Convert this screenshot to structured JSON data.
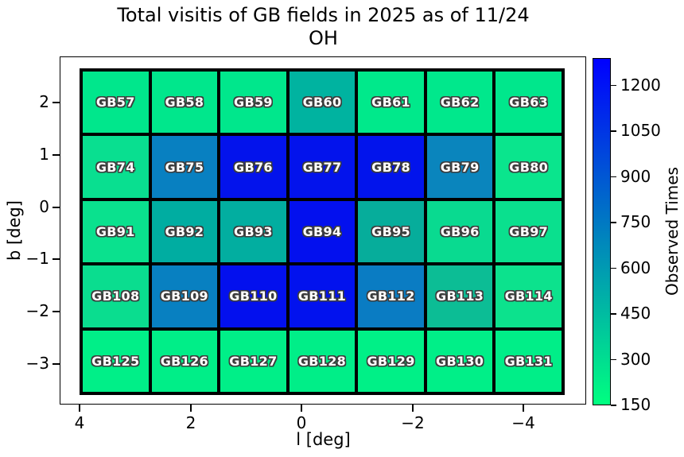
{
  "title": {
    "line1": "Total visitis of GB fields in 2025 as of 11/24",
    "line2": "OH"
  },
  "chart_data": {
    "type": "heatmap",
    "title": "Total visitis of GB fields in 2025 as of 11/24 OH",
    "xlabel": "l [deg]",
    "ylabel": "b [deg]",
    "x_ticks": [
      "4",
      "2",
      "0",
      "−2",
      "−4"
    ],
    "y_ticks": [
      "2",
      "1",
      "0",
      "−1",
      "−2",
      "−3"
    ],
    "colorbar": {
      "label": "Observed Times",
      "ticks": [
        "1200",
        "1050",
        "900",
        "750",
        "600",
        "450",
        "300",
        "150"
      ],
      "range_low": 150,
      "range_high": 1290,
      "color_low": "#00ff80",
      "color_high": "#0000ff",
      "colormap": "winter"
    },
    "rows": [
      {
        "cells": [
          {
            "label": "GB57",
            "value": 250,
            "color": "#00e78c"
          },
          {
            "label": "GB58",
            "value": 250,
            "color": "#00e78c"
          },
          {
            "label": "GB59",
            "value": 250,
            "color": "#00e78c"
          },
          {
            "label": "GB60",
            "value": 490,
            "color": "#00b3a0"
          },
          {
            "label": "GB61",
            "value": 245,
            "color": "#00e98b"
          },
          {
            "label": "GB62",
            "value": 250,
            "color": "#00e88c"
          },
          {
            "label": "GB63",
            "value": 250,
            "color": "#00e78c"
          }
        ]
      },
      {
        "cells": [
          {
            "label": "GB74",
            "value": 300,
            "color": "#09df90"
          },
          {
            "label": "GB75",
            "value": 720,
            "color": "#0880c1"
          },
          {
            "label": "GB76",
            "value": 1230,
            "color": "#0313ec"
          },
          {
            "label": "GB77",
            "value": 1230,
            "color": "#0313ec"
          },
          {
            "label": "GB78",
            "value": 1225,
            "color": "#0214ec"
          },
          {
            "label": "GB79",
            "value": 695,
            "color": "#0a85bd"
          },
          {
            "label": "GB80",
            "value": 265,
            "color": "#0ae58d"
          }
        ]
      },
      {
        "cells": [
          {
            "label": "GB91",
            "value": 280,
            "color": "#0ae18e"
          },
          {
            "label": "GB92",
            "value": 515,
            "color": "#00ada1"
          },
          {
            "label": "GB93",
            "value": 510,
            "color": "#02aea0"
          },
          {
            "label": "GB94",
            "value": 1245,
            "color": "#0310ee"
          },
          {
            "label": "GB95",
            "value": 510,
            "color": "#06ad9b"
          },
          {
            "label": "GB96",
            "value": 320,
            "color": "#09da90"
          },
          {
            "label": "GB97",
            "value": 285,
            "color": "#0ae08e"
          }
        ]
      },
      {
        "cells": [
          {
            "label": "GB108",
            "value": 300,
            "color": "#0add8f"
          },
          {
            "label": "GB109",
            "value": 720,
            "color": "#0880c1"
          },
          {
            "label": "GB110",
            "value": 1245,
            "color": "#0310ee"
          },
          {
            "label": "GB111",
            "value": 1240,
            "color": "#0212ee"
          },
          {
            "label": "GB112",
            "value": 740,
            "color": "#0a7cc3"
          },
          {
            "label": "GB113",
            "value": 435,
            "color": "#0cbd95"
          },
          {
            "label": "GB114",
            "value": 275,
            "color": "#0ce28d"
          }
        ]
      },
      {
        "cells": [
          {
            "label": "GB125",
            "value": 200,
            "color": "#00ef88"
          },
          {
            "label": "GB126",
            "value": 205,
            "color": "#00ee88"
          },
          {
            "label": "GB127",
            "value": 200,
            "color": "#00ef88"
          },
          {
            "label": "GB128",
            "value": 205,
            "color": "#00ee88"
          },
          {
            "label": "GB129",
            "value": 195,
            "color": "#00f087"
          },
          {
            "label": "GB130",
            "value": 200,
            "color": "#00ef88"
          },
          {
            "label": "GB131",
            "value": 205,
            "color": "#00ee88"
          }
        ]
      }
    ]
  }
}
